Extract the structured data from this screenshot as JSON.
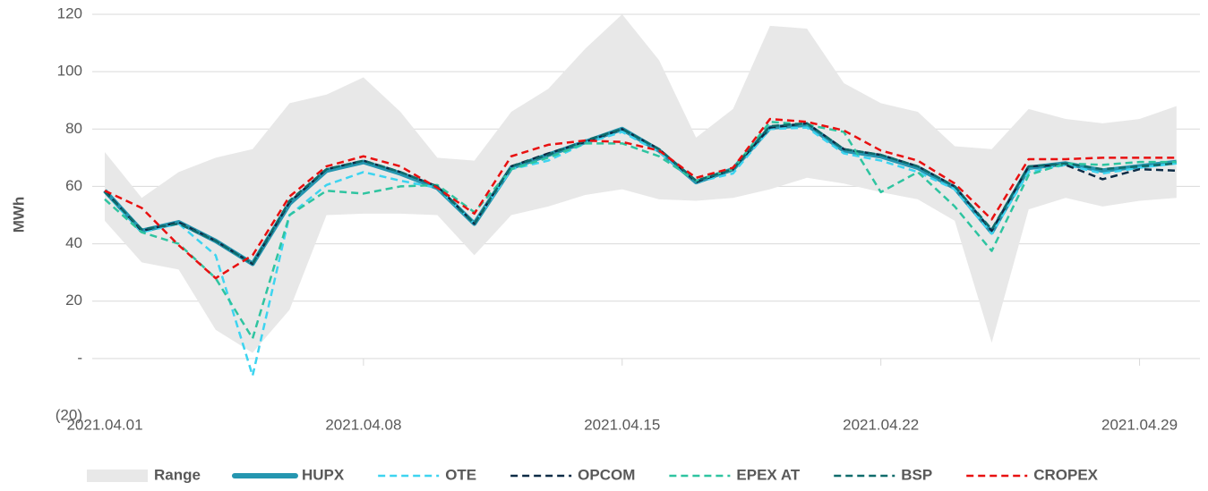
{
  "chart_data": {
    "type": "line",
    "y_label": "MWh",
    "categories": [
      "2021.04.01",
      null,
      null,
      null,
      null,
      null,
      null,
      "2021.04.08",
      null,
      null,
      null,
      null,
      null,
      null,
      "2021.04.15",
      null,
      null,
      null,
      null,
      null,
      null,
      "2021.04.22",
      null,
      null,
      null,
      null,
      null,
      null,
      "2021.04.29",
      null
    ],
    "ylim": [
      -20,
      120
    ],
    "yticks": [
      {
        "value": -20,
        "label": "(20)"
      },
      {
        "value": 0,
        "label": "-"
      },
      20,
      40,
      60,
      80,
      100,
      120
    ],
    "grid": true,
    "legend": "bottom",
    "series": [
      {
        "name": "Range",
        "type": "area",
        "color": "#e8e8e8",
        "high": [
          72,
          56,
          65,
          70,
          73,
          89,
          92,
          98,
          86,
          70,
          69,
          86,
          94,
          108,
          120,
          104,
          77,
          87,
          116,
          115,
          96,
          89,
          86,
          74,
          73,
          87,
          83.5,
          82,
          83.5,
          88
        ],
        "low": [
          48,
          33.5,
          31,
          10,
          2,
          17,
          50,
          50.5,
          50.5,
          50,
          36,
          50,
          53,
          57,
          59,
          55.5,
          55,
          56,
          59,
          63,
          61,
          58,
          55.5,
          48,
          5.5,
          52,
          56,
          53,
          55,
          56
        ]
      },
      {
        "name": "HUPX",
        "color": "#2596b0",
        "dash": "solid",
        "values": [
          58.5,
          44.5,
          47.5,
          41,
          33,
          54,
          65.5,
          68.5,
          64.5,
          59.5,
          47,
          66.5,
          71,
          75.5,
          80,
          72.5,
          61.5,
          66,
          80.5,
          81.5,
          72.5,
          70.5,
          66.5,
          59.5,
          44,
          66.5,
          68,
          65.5,
          67,
          68.5
        ]
      },
      {
        "name": "OTE",
        "color": "#3dd4f0",
        "dash": "dashed",
        "values": [
          58,
          44,
          47,
          36,
          -6,
          50,
          60.5,
          65,
          62,
          59.5,
          47,
          66,
          69,
          75,
          79,
          72,
          61.5,
          64.5,
          80,
          80.5,
          71.5,
          69,
          65,
          59,
          43.5,
          65,
          67.5,
          64.5,
          66.5,
          68
        ]
      },
      {
        "name": "OPCOM",
        "color": "#0d2b45",
        "dash": "dashed",
        "values": [
          58.5,
          44.5,
          47.5,
          41,
          33,
          54.5,
          66,
          69,
          65,
          60,
          47,
          67,
          71.5,
          75.5,
          80,
          73,
          61.5,
          66,
          80.5,
          82,
          73,
          71,
          67,
          60,
          44.5,
          67,
          67.5,
          62.5,
          66,
          65.5
        ]
      },
      {
        "name": "EPEX AT",
        "color": "#2ec4a0",
        "dash": "dashed",
        "values": [
          55.5,
          44,
          40,
          28,
          7,
          50,
          58.5,
          57.5,
          60,
          60.5,
          51,
          66,
          70,
          75,
          75,
          70.5,
          62,
          66,
          82.5,
          81.5,
          79,
          58,
          65,
          53,
          37.5,
          64,
          68,
          67.5,
          68.5,
          68.5
        ]
      },
      {
        "name": "BSP",
        "color": "#0f6b6b",
        "dash": "dashed",
        "values": [
          58,
          45,
          47,
          41,
          33,
          55,
          66,
          69,
          65,
          60,
          47,
          67,
          71,
          76,
          80,
          73,
          62,
          66,
          81,
          82,
          73,
          71,
          67,
          60,
          45,
          67,
          68,
          66,
          67,
          68
        ]
      },
      {
        "name": "CROPEX",
        "color": "#e81010",
        "dash": "dashed",
        "values": [
          58.5,
          52.5,
          39.5,
          28,
          36,
          56.5,
          67,
          70.5,
          67,
          59.5,
          50.5,
          70.5,
          74.5,
          76,
          75.5,
          72.5,
          63,
          66.5,
          83.5,
          82.5,
          79.5,
          72.5,
          69,
          61,
          48.5,
          69.5,
          69.5,
          70,
          70,
          70
        ]
      }
    ]
  }
}
